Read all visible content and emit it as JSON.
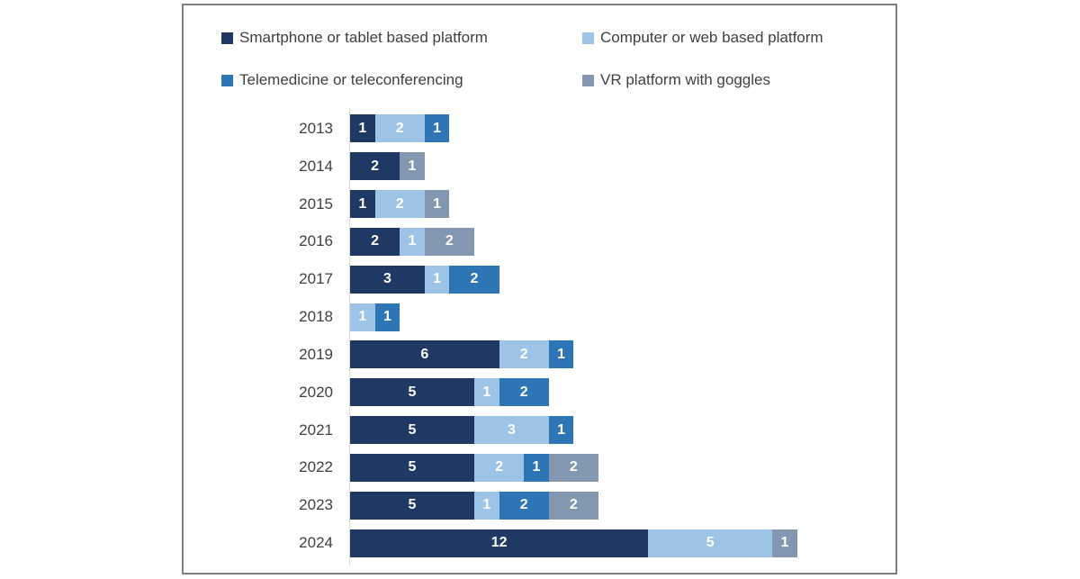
{
  "colors": {
    "smartphone": "#1F3864",
    "computer": "#9DC3E6",
    "telemedicine": "#2E75B6",
    "vr": "#8497B0",
    "axis_line": "#D9D9D9",
    "label_text": "#404040",
    "panel_border": "#7F7F7F",
    "value_label_text": "#FFFFFF"
  },
  "legend": [
    {
      "label": "Smartphone or tablet based platform",
      "color": "#1F3864"
    },
    {
      "label": "Computer or web based platform",
      "color": "#9DC3E6"
    },
    {
      "label": "Telemedicine or teleconferencing",
      "color": "#2E75B6"
    },
    {
      "label": "VR platform with goggles",
      "color": "#8497B0"
    }
  ],
  "chart_data": {
    "type": "bar",
    "orientation": "horizontal",
    "stacked": true,
    "title": "",
    "xlabel": "",
    "ylabel": "",
    "grid": false,
    "legend_position": "top",
    "value_labels_shown": true,
    "categories": [
      "2013",
      "2014",
      "2015",
      "2016",
      "2017",
      "2018",
      "2019",
      "2020",
      "2021",
      "2022",
      "2023",
      "2024"
    ],
    "series": [
      {
        "name": "Smartphone or tablet based platform",
        "color": "#1F3864",
        "values": [
          1,
          2,
          1,
          2,
          3,
          0,
          6,
          5,
          5,
          5,
          5,
          12
        ]
      },
      {
        "name": "Computer or web based platform",
        "color": "#9DC3E6",
        "values": [
          2,
          0,
          2,
          1,
          1,
          1,
          2,
          1,
          3,
          2,
          1,
          5
        ]
      },
      {
        "name": "Telemedicine or teleconferencing",
        "color": "#2E75B6",
        "values": [
          1,
          0,
          0,
          0,
          2,
          1,
          1,
          2,
          1,
          1,
          2,
          0
        ]
      },
      {
        "name": "VR platform with goggles",
        "color": "#8497B0",
        "values": [
          0,
          1,
          1,
          2,
          0,
          0,
          0,
          0,
          0,
          2,
          2,
          1
        ]
      }
    ],
    "totals": [
      4,
      3,
      4,
      5,
      6,
      2,
      9,
      8,
      9,
      10,
      10,
      18
    ]
  }
}
